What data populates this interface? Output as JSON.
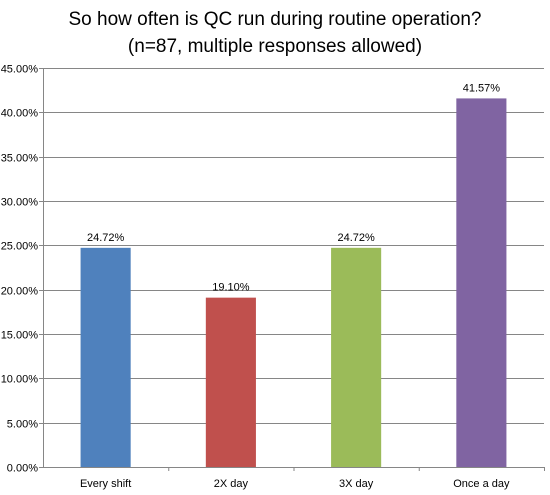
{
  "chart_data": {
    "type": "bar",
    "title": [
      "So how often is QC run during routine operation?",
      "(n=87, multiple responses allowed)"
    ],
    "categories": [
      "Every shift",
      "2X day",
      "3X day",
      "Once a day"
    ],
    "values": [
      24.72,
      19.1,
      24.72,
      41.57
    ],
    "data_labels": [
      "24.72%",
      "19.10%",
      "24.72%",
      "41.57%"
    ],
    "bar_colors": [
      "#4f81bd",
      "#c0504d",
      "#9bbb59",
      "#8064a2"
    ],
    "y_ticks": [
      "0.00%",
      "5.00%",
      "10.00%",
      "15.00%",
      "20.00%",
      "25.00%",
      "30.00%",
      "35.00%",
      "40.00%",
      "45.00%"
    ],
    "ylim": [
      0,
      45
    ],
    "y_step": 5,
    "grid": true,
    "legend": "none",
    "xlabel": "",
    "ylabel": ""
  }
}
